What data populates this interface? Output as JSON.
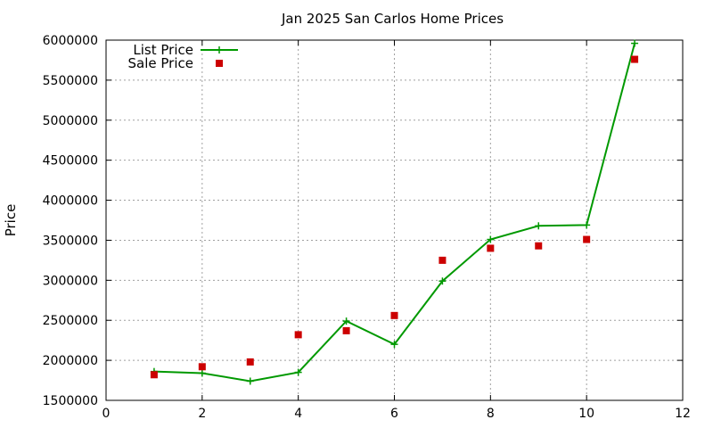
{
  "chart_data": {
    "type": "line",
    "title": "Jan 2025 San Carlos Home Prices",
    "xlabel": "",
    "ylabel": "Price",
    "xlim": [
      0,
      12
    ],
    "ylim": [
      1500000,
      6000000
    ],
    "xticks": [
      0,
      2,
      4,
      6,
      8,
      10,
      12
    ],
    "yticks": [
      1500000,
      2000000,
      2500000,
      3000000,
      3500000,
      4000000,
      4500000,
      5000000,
      5500000,
      6000000
    ],
    "grid": true,
    "legend_position": "top-left",
    "series": [
      {
        "name": "List Price",
        "style": "line-with-plus-markers",
        "color": "#009900",
        "x": [
          1,
          2,
          3,
          4,
          5,
          6,
          7,
          8,
          9,
          10,
          11
        ],
        "y": [
          1860000,
          1840000,
          1740000,
          1850000,
          2490000,
          2200000,
          2990000,
          3510000,
          3680000,
          3690000,
          5960000
        ]
      },
      {
        "name": "Sale Price",
        "style": "square-markers",
        "color": "#cc0000",
        "x": [
          1,
          2,
          3,
          4,
          5,
          6,
          7,
          8,
          9,
          10,
          11
        ],
        "y": [
          1820000,
          1920000,
          1980000,
          2320000,
          2370000,
          2560000,
          3250000,
          3400000,
          3430000,
          3510000,
          5760000
        ]
      }
    ]
  }
}
